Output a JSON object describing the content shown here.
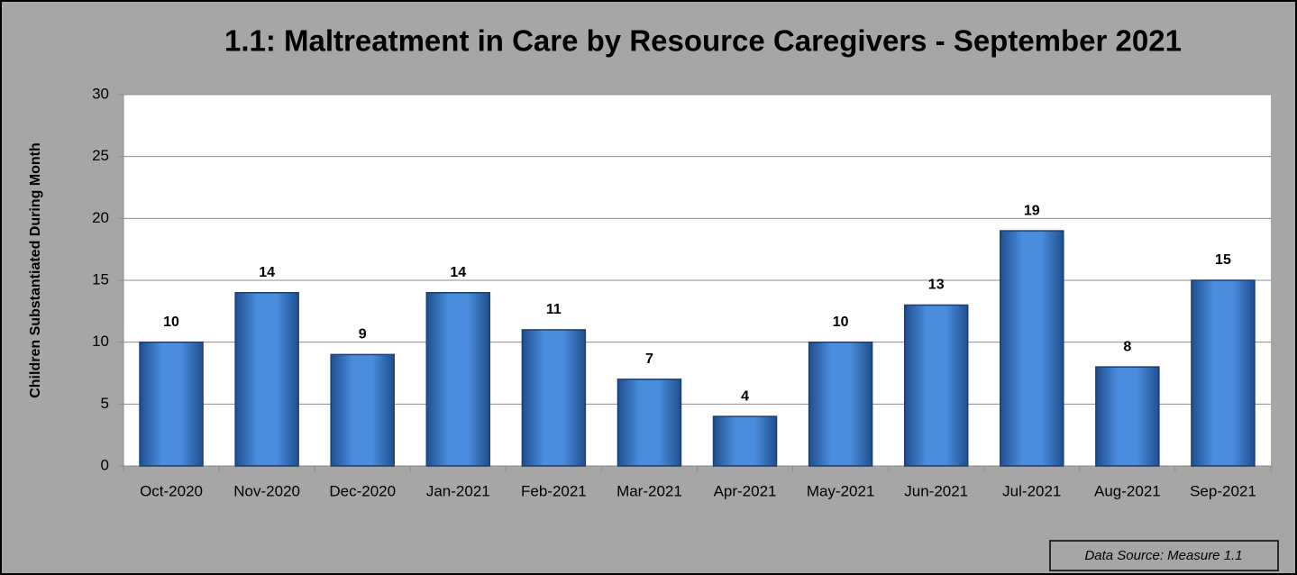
{
  "chart_data": {
    "type": "bar",
    "title": "1.1: Maltreatment in Care by Resource Caregivers - September 2021",
    "y_label": "Children Substantiated During Month",
    "annotation": "Data Source: Measure 1.1",
    "categories": [
      "Oct-2020",
      "Nov-2020",
      "Dec-2020",
      "Jan-2021",
      "Feb-2021",
      "Mar-2021",
      "Apr-2021",
      "May-2021",
      "Jun-2021",
      "Jul-2021",
      "Aug-2021",
      "Sep-2021"
    ],
    "values": [
      10,
      14,
      9,
      14,
      11,
      7,
      4,
      10,
      13,
      19,
      8,
      15
    ],
    "color": "#3f7fd0",
    "ylim": [
      0,
      30
    ],
    "yticks": [
      0,
      5,
      10,
      15,
      20,
      25,
      30
    ],
    "grid": true
  }
}
